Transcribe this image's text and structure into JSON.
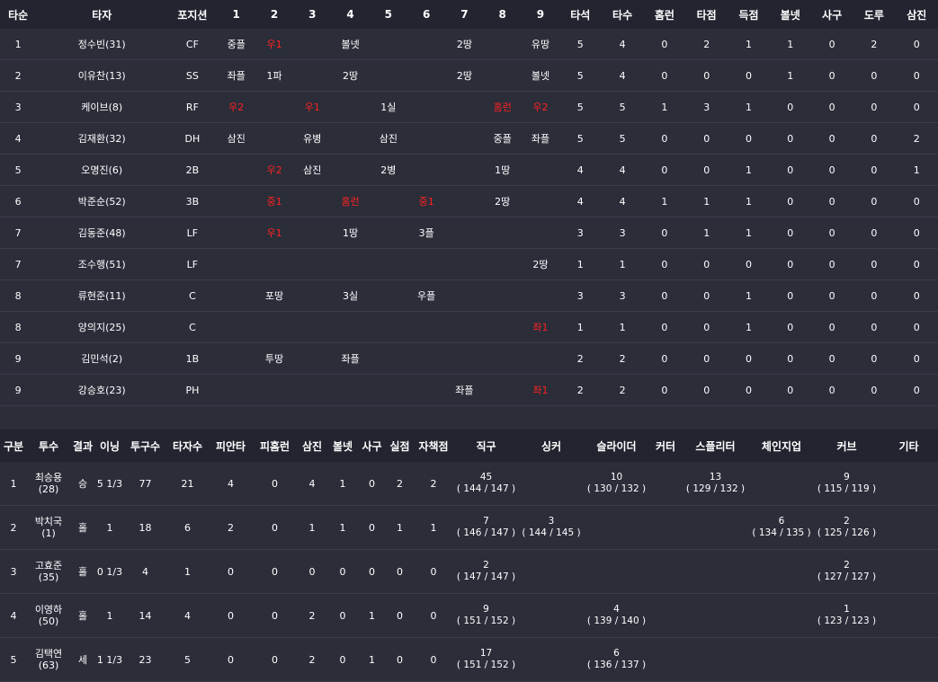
{
  "batting": {
    "headers": [
      "타순",
      "타자",
      "포지션",
      "1",
      "2",
      "3",
      "4",
      "5",
      "6",
      "7",
      "8",
      "9",
      "타석",
      "타수",
      "홈런",
      "타점",
      "득점",
      "볼넷",
      "사구",
      "도루",
      "삼진"
    ],
    "rows": [
      {
        "order": "1",
        "name": "정수빈(31)",
        "pos": "CF",
        "innings": [
          {
            "t": "중플",
            "r": false
          },
          {
            "t": "우1",
            "r": true
          },
          {
            "t": "",
            "r": false
          },
          {
            "t": "볼넷",
            "r": false
          },
          {
            "t": "",
            "r": false
          },
          {
            "t": "",
            "r": false
          },
          {
            "t": "2땅",
            "r": false
          },
          {
            "t": "",
            "r": false
          },
          {
            "t": "유땅",
            "r": false
          }
        ],
        "stats": [
          "5",
          "4",
          "0",
          "2",
          "1",
          "1",
          "0",
          "2",
          "0"
        ]
      },
      {
        "order": "2",
        "name": "이유찬(13)",
        "pos": "SS",
        "innings": [
          {
            "t": "좌플",
            "r": false
          },
          {
            "t": "1파",
            "r": false
          },
          {
            "t": "",
            "r": false
          },
          {
            "t": "2땅",
            "r": false
          },
          {
            "t": "",
            "r": false
          },
          {
            "t": "",
            "r": false
          },
          {
            "t": "2땅",
            "r": false
          },
          {
            "t": "",
            "r": false
          },
          {
            "t": "볼넷",
            "r": false
          }
        ],
        "stats": [
          "5",
          "4",
          "0",
          "0",
          "0",
          "1",
          "0",
          "0",
          "0"
        ]
      },
      {
        "order": "3",
        "name": "케이브(8)",
        "pos": "RF",
        "innings": [
          {
            "t": "우2",
            "r": true
          },
          {
            "t": "",
            "r": false
          },
          {
            "t": "우1",
            "r": true
          },
          {
            "t": "",
            "r": false
          },
          {
            "t": "1실",
            "r": false
          },
          {
            "t": "",
            "r": false
          },
          {
            "t": "",
            "r": false
          },
          {
            "t": "홈런",
            "r": true
          },
          {
            "t": "우2",
            "r": true
          }
        ],
        "stats": [
          "5",
          "5",
          "1",
          "3",
          "1",
          "0",
          "0",
          "0",
          "0"
        ]
      },
      {
        "order": "4",
        "name": "김재환(32)",
        "pos": "DH",
        "innings": [
          {
            "t": "삼진",
            "r": false
          },
          {
            "t": "",
            "r": false
          },
          {
            "t": "유병",
            "r": false
          },
          {
            "t": "",
            "r": false
          },
          {
            "t": "삼진",
            "r": false
          },
          {
            "t": "",
            "r": false
          },
          {
            "t": "",
            "r": false
          },
          {
            "t": "중플",
            "r": false
          },
          {
            "t": "좌플",
            "r": false
          }
        ],
        "stats": [
          "5",
          "5",
          "0",
          "0",
          "0",
          "0",
          "0",
          "0",
          "2"
        ]
      },
      {
        "order": "5",
        "name": "오명진(6)",
        "pos": "2B",
        "innings": [
          {
            "t": "",
            "r": false
          },
          {
            "t": "우2",
            "r": true
          },
          {
            "t": "삼진",
            "r": false
          },
          {
            "t": "",
            "r": false
          },
          {
            "t": "2병",
            "r": false
          },
          {
            "t": "",
            "r": false
          },
          {
            "t": "",
            "r": false
          },
          {
            "t": "1땅",
            "r": false
          },
          {
            "t": "",
            "r": false
          }
        ],
        "stats": [
          "4",
          "4",
          "0",
          "0",
          "1",
          "0",
          "0",
          "0",
          "1"
        ]
      },
      {
        "order": "6",
        "name": "박준순(52)",
        "pos": "3B",
        "innings": [
          {
            "t": "",
            "r": false
          },
          {
            "t": "중1",
            "r": true
          },
          {
            "t": "",
            "r": false
          },
          {
            "t": "홈런",
            "r": true
          },
          {
            "t": "",
            "r": false
          },
          {
            "t": "중1",
            "r": true
          },
          {
            "t": "",
            "r": false
          },
          {
            "t": "2땅",
            "r": false
          },
          {
            "t": "",
            "r": false
          }
        ],
        "stats": [
          "4",
          "4",
          "1",
          "1",
          "1",
          "0",
          "0",
          "0",
          "0"
        ]
      },
      {
        "order": "7",
        "name": "김동준(48)",
        "pos": "LF",
        "innings": [
          {
            "t": "",
            "r": false
          },
          {
            "t": "우1",
            "r": true
          },
          {
            "t": "",
            "r": false
          },
          {
            "t": "1땅",
            "r": false
          },
          {
            "t": "",
            "r": false
          },
          {
            "t": "3플",
            "r": false
          },
          {
            "t": "",
            "r": false
          },
          {
            "t": "",
            "r": false
          },
          {
            "t": "",
            "r": false
          }
        ],
        "stats": [
          "3",
          "3",
          "0",
          "1",
          "1",
          "0",
          "0",
          "0",
          "0"
        ]
      },
      {
        "order": "7",
        "name": "조수행(51)",
        "pos": "LF",
        "innings": [
          {
            "t": "",
            "r": false
          },
          {
            "t": "",
            "r": false
          },
          {
            "t": "",
            "r": false
          },
          {
            "t": "",
            "r": false
          },
          {
            "t": "",
            "r": false
          },
          {
            "t": "",
            "r": false
          },
          {
            "t": "",
            "r": false
          },
          {
            "t": "",
            "r": false
          },
          {
            "t": "2땅",
            "r": false
          }
        ],
        "stats": [
          "1",
          "1",
          "0",
          "0",
          "0",
          "0",
          "0",
          "0",
          "0"
        ]
      },
      {
        "order": "8",
        "name": "류현준(11)",
        "pos": "C",
        "innings": [
          {
            "t": "",
            "r": false
          },
          {
            "t": "포땅",
            "r": false
          },
          {
            "t": "",
            "r": false
          },
          {
            "t": "3실",
            "r": false
          },
          {
            "t": "",
            "r": false
          },
          {
            "t": "우플",
            "r": false
          },
          {
            "t": "",
            "r": false
          },
          {
            "t": "",
            "r": false
          },
          {
            "t": "",
            "r": false
          }
        ],
        "stats": [
          "3",
          "3",
          "0",
          "0",
          "1",
          "0",
          "0",
          "0",
          "0"
        ]
      },
      {
        "order": "8",
        "name": "양의지(25)",
        "pos": "C",
        "innings": [
          {
            "t": "",
            "r": false
          },
          {
            "t": "",
            "r": false
          },
          {
            "t": "",
            "r": false
          },
          {
            "t": "",
            "r": false
          },
          {
            "t": "",
            "r": false
          },
          {
            "t": "",
            "r": false
          },
          {
            "t": "",
            "r": false
          },
          {
            "t": "",
            "r": false
          },
          {
            "t": "좌1",
            "r": true
          }
        ],
        "stats": [
          "1",
          "1",
          "0",
          "0",
          "1",
          "0",
          "0",
          "0",
          "0"
        ]
      },
      {
        "order": "9",
        "name": "김민석(2)",
        "pos": "1B",
        "innings": [
          {
            "t": "",
            "r": false
          },
          {
            "t": "투땅",
            "r": false
          },
          {
            "t": "",
            "r": false
          },
          {
            "t": "좌플",
            "r": false
          },
          {
            "t": "",
            "r": false
          },
          {
            "t": "",
            "r": false
          },
          {
            "t": "",
            "r": false
          },
          {
            "t": "",
            "r": false
          },
          {
            "t": "",
            "r": false
          }
        ],
        "stats": [
          "2",
          "2",
          "0",
          "0",
          "0",
          "0",
          "0",
          "0",
          "0"
        ]
      },
      {
        "order": "9",
        "name": "강승호(23)",
        "pos": "PH",
        "innings": [
          {
            "t": "",
            "r": false
          },
          {
            "t": "",
            "r": false
          },
          {
            "t": "",
            "r": false
          },
          {
            "t": "",
            "r": false
          },
          {
            "t": "",
            "r": false
          },
          {
            "t": "",
            "r": false
          },
          {
            "t": "좌플",
            "r": false
          },
          {
            "t": "",
            "r": false
          },
          {
            "t": "좌1",
            "r": true
          }
        ],
        "stats": [
          "2",
          "2",
          "0",
          "0",
          "0",
          "0",
          "0",
          "0",
          "0"
        ]
      }
    ]
  },
  "pitching": {
    "headers": [
      "구분",
      "투수",
      "결과",
      "이닝",
      "투구수",
      "타자수",
      "피안타",
      "피홈런",
      "삼진",
      "볼넷",
      "사구",
      "실점",
      "자책점",
      "직구",
      "싱커",
      "슬라이더",
      "커터",
      "스플리터",
      "체인지업",
      "커브",
      "기타"
    ],
    "rows": [
      {
        "no": "1",
        "name": "최승용",
        "num": "(28)",
        "result": "승",
        "stats": [
          "5 1/3",
          "77",
          "21",
          "4",
          "0",
          "4",
          "1",
          "0",
          "2",
          "2"
        ],
        "pitches": [
          {
            "c": "45",
            "s": "( 144 / 147 )"
          },
          {
            "c": "",
            "s": ""
          },
          {
            "c": "10",
            "s": "( 130 / 132 )"
          },
          {
            "c": "",
            "s": ""
          },
          {
            "c": "13",
            "s": "( 129 / 132 )"
          },
          {
            "c": "",
            "s": ""
          },
          {
            "c": "9",
            "s": "( 115 / 119 )"
          },
          {
            "c": "",
            "s": ""
          }
        ]
      },
      {
        "no": "2",
        "name": "박치국",
        "num": "(1)",
        "result": "홀",
        "stats": [
          "1",
          "18",
          "6",
          "2",
          "0",
          "1",
          "1",
          "0",
          "1",
          "1"
        ],
        "pitches": [
          {
            "c": "7",
            "s": "( 146 / 147 )"
          },
          {
            "c": "3",
            "s": "( 144 / 145 )"
          },
          {
            "c": "",
            "s": ""
          },
          {
            "c": "",
            "s": ""
          },
          {
            "c": "",
            "s": ""
          },
          {
            "c": "6",
            "s": "( 134 / 135 )"
          },
          {
            "c": "2",
            "s": "( 125 / 126 )"
          },
          {
            "c": "",
            "s": ""
          }
        ]
      },
      {
        "no": "3",
        "name": "고효준",
        "num": "(35)",
        "result": "홀",
        "stats": [
          "0 1/3",
          "4",
          "1",
          "0",
          "0",
          "0",
          "0",
          "0",
          "0",
          "0"
        ],
        "pitches": [
          {
            "c": "2",
            "s": "( 147 / 147 )"
          },
          {
            "c": "",
            "s": ""
          },
          {
            "c": "",
            "s": ""
          },
          {
            "c": "",
            "s": ""
          },
          {
            "c": "",
            "s": ""
          },
          {
            "c": "",
            "s": ""
          },
          {
            "c": "2",
            "s": "( 127 / 127 )"
          },
          {
            "c": "",
            "s": ""
          }
        ]
      },
      {
        "no": "4",
        "name": "이영하",
        "num": "(50)",
        "result": "홀",
        "stats": [
          "1",
          "14",
          "4",
          "0",
          "0",
          "2",
          "0",
          "1",
          "0",
          "0"
        ],
        "pitches": [
          {
            "c": "9",
            "s": "( 151 / 152 )"
          },
          {
            "c": "",
            "s": ""
          },
          {
            "c": "4",
            "s": "( 139 / 140 )"
          },
          {
            "c": "",
            "s": ""
          },
          {
            "c": "",
            "s": ""
          },
          {
            "c": "",
            "s": ""
          },
          {
            "c": "1",
            "s": "( 123 / 123 )"
          },
          {
            "c": "",
            "s": ""
          }
        ]
      },
      {
        "no": "5",
        "name": "김택연",
        "num": "(63)",
        "result": "세",
        "stats": [
          "1 1/3",
          "23",
          "5",
          "0",
          "0",
          "2",
          "0",
          "1",
          "0",
          "0"
        ],
        "pitches": [
          {
            "c": "17",
            "s": "( 151 / 152 )"
          },
          {
            "c": "",
            "s": ""
          },
          {
            "c": "6",
            "s": "( 136 / 137 )"
          },
          {
            "c": "",
            "s": ""
          },
          {
            "c": "",
            "s": ""
          },
          {
            "c": "",
            "s": ""
          },
          {
            "c": "",
            "s": ""
          },
          {
            "c": "",
            "s": ""
          }
        ]
      }
    ]
  }
}
